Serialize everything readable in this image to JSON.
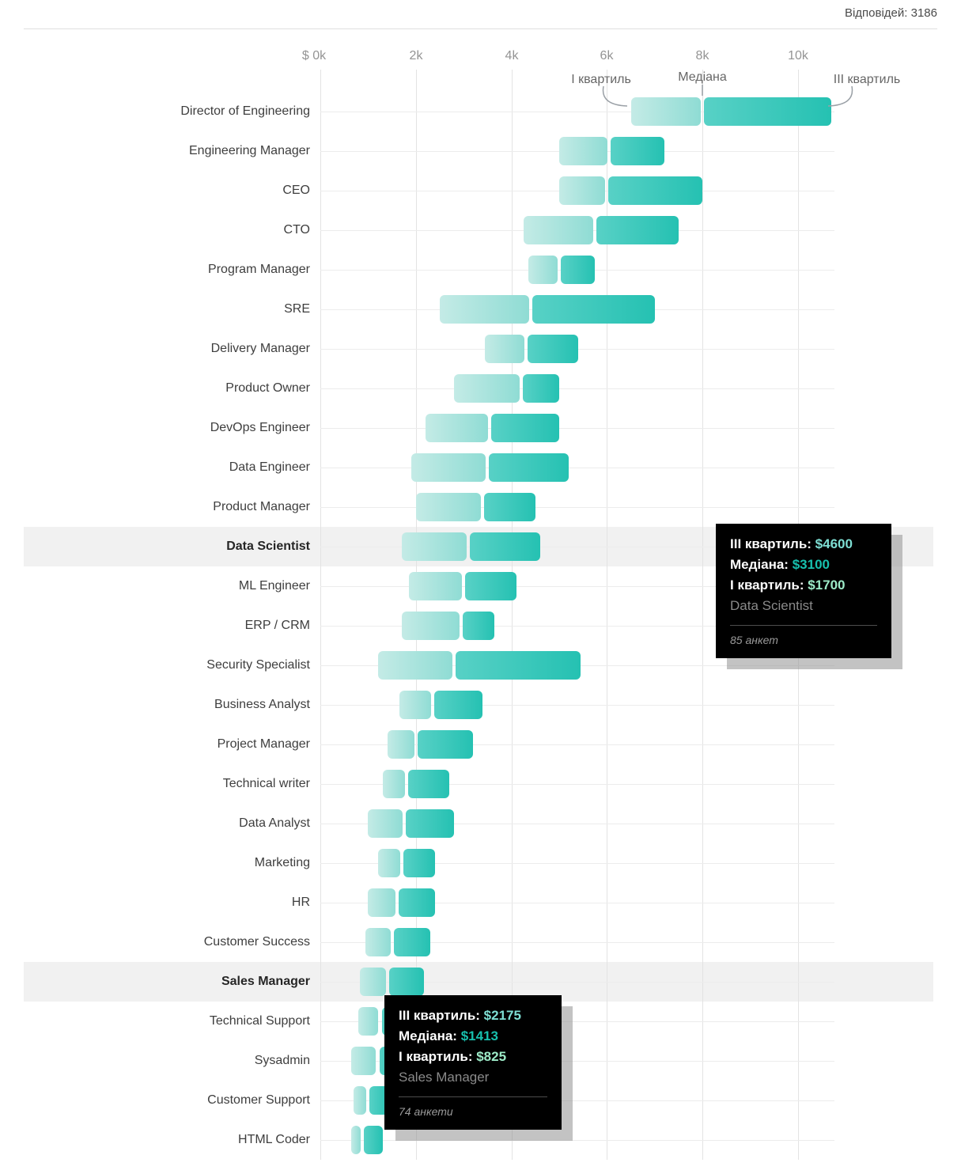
{
  "header": {
    "responses_label": "Відповідей: 3186"
  },
  "axis": {
    "ticks": [
      {
        "value": 0,
        "label": "$ 0k"
      },
      {
        "value": 2000,
        "label": "2k"
      },
      {
        "value": 4000,
        "label": "4k"
      },
      {
        "value": 6000,
        "label": "6k"
      },
      {
        "value": 8000,
        "label": "8k"
      },
      {
        "value": 10000,
        "label": "10k"
      }
    ]
  },
  "annotations": {
    "q1_label": "І квартиль",
    "median_label": "Медіана",
    "q3_label": "ІІІ квартиль"
  },
  "chart_data": {
    "type": "bar",
    "subtype": "quartile-range-horizontal",
    "title": "",
    "unit": "$",
    "xlim": [
      0,
      11000
    ],
    "grid": true,
    "categories": [
      "Director of Engineering",
      "Engineering Manager",
      "CEO",
      "CTO",
      "Program Manager",
      "SRE",
      "Delivery Manager",
      "Product Owner",
      "DevOps Engineer",
      "Data Engineer",
      "Product Manager",
      "Data Scientist",
      "ML Engineer",
      "ERP / CRM",
      "Security Specialist",
      "Business Analyst",
      "Project Manager",
      "Technical writer",
      "Data Analyst",
      "Marketing",
      "HR",
      "Customer Success",
      "Sales Manager",
      "Technical Support",
      "Sysadmin",
      "Customer Support",
      "HTML Coder"
    ],
    "series": [
      {
        "name": "І квартиль",
        "values": [
          6500,
          5000,
          5000,
          4250,
          4350,
          2500,
          3450,
          2800,
          2200,
          1900,
          2000,
          1700,
          1850,
          1700,
          1200,
          1650,
          1400,
          1300,
          1000,
          1200,
          1000,
          950,
          825,
          800,
          650,
          700,
          650
        ]
      },
      {
        "name": "Медіана",
        "values": [
          8000,
          6050,
          6000,
          5750,
          5000,
          4400,
          4300,
          4200,
          3550,
          3500,
          3400,
          3100,
          3000,
          2950,
          2800,
          2350,
          2000,
          1800,
          1750,
          1700,
          1600,
          1500,
          1413,
          1250,
          1200,
          1000,
          875
        ]
      },
      {
        "name": "ІІІ квартиль",
        "values": [
          10700,
          7200,
          8000,
          7500,
          5750,
          7000,
          5400,
          5000,
          5000,
          5200,
          4500,
          4600,
          4100,
          3650,
          5450,
          3400,
          3200,
          2700,
          2800,
          2400,
          2400,
          2300,
          2175,
          1600,
          1550,
          1450,
          1300
        ]
      }
    ],
    "highlighted_categories": [
      "Data Scientist",
      "Sales Manager"
    ]
  },
  "tooltips": [
    {
      "q3_label": "ІІІ квартиль:",
      "q3_value": "$4600",
      "median_label": "Медіана:",
      "median_value": "$3100",
      "q1_label": "І квартиль:",
      "q1_value": "$1700",
      "name": "Data Scientist",
      "count": "85 анкет"
    },
    {
      "q3_label": "ІІІ квартиль:",
      "q3_value": "$2175",
      "median_label": "Медіана:",
      "median_value": "$1413",
      "q1_label": "І квартиль:",
      "q1_value": "$825",
      "name": "Sales Manager",
      "count": "74 анкети"
    }
  ],
  "colors": {
    "bar_q1_start": "#c4ebe6",
    "bar_q1_end": "#8fdcd4",
    "bar_q3_start": "#58d1c6",
    "bar_q3_end": "#25c1b2",
    "q3_value": "#7edfd4",
    "median_value": "#17c0ae",
    "q1_value": "#9debc8",
    "highlight_band": "#f1f1f1",
    "tooltip_bg": "#000000"
  }
}
